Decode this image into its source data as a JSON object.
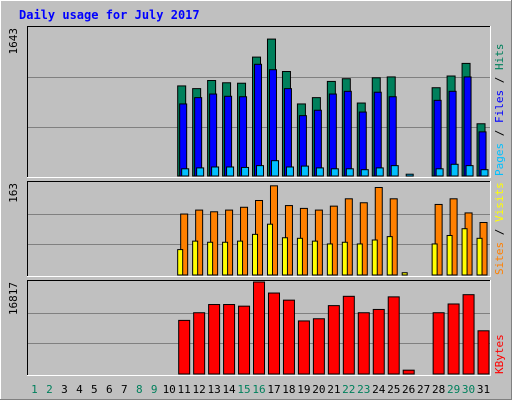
{
  "chart_data": {
    "type": "bar",
    "title": "Daily usage for July 2017",
    "colors": {
      "background": "#c0c0c0",
      "title": "#0000ff",
      "hits": "#00805c",
      "files": "#0000ff",
      "pages": "#00c0ff",
      "visits": "#ffff00",
      "sites": "#ff8000",
      "kbytes": "#ff0000",
      "gridline": "#808080",
      "weekday_label": "#000000",
      "weekend_label": "#00805c"
    },
    "categories": [
      "1",
      "2",
      "3",
      "4",
      "5",
      "6",
      "7",
      "8",
      "9",
      "10",
      "11",
      "12",
      "13",
      "14",
      "15",
      "16",
      "17",
      "18",
      "19",
      "20",
      "21",
      "22",
      "23",
      "24",
      "25",
      "26",
      "27",
      "28",
      "29",
      "30",
      "31"
    ],
    "weekend_days": [
      "1",
      "2",
      "8",
      "9",
      "15",
      "16",
      "22",
      "23",
      "29",
      "30"
    ],
    "panels": [
      {
        "name": "traffic",
        "y_max_label": "1643",
        "ylim": [
          0,
          1643
        ],
        "legend": [
          {
            "label": "Pages",
            "color": "#00c0ff"
          },
          {
            "label": "Files",
            "color": "#0000ff"
          },
          {
            "label": "Hits",
            "color": "#00805c"
          }
        ],
        "separator": " / ",
        "series": [
          {
            "name": "Hits",
            "color": "#00805c",
            "values": [
              0,
              0,
              0,
              0,
              0,
              0,
              0,
              0,
              0,
              0,
              1000,
              970,
              1060,
              1035,
              1030,
              1320,
              1520,
              1160,
              800,
              870,
              1050,
              1080,
              810,
              1090,
              1100,
              0,
              0,
              980,
              1110,
              1250,
              580
            ]
          },
          {
            "name": "Files",
            "color": "#0000ff",
            "values": [
              0,
              0,
              0,
              0,
              0,
              0,
              0,
              0,
              0,
              0,
              800,
              870,
              910,
              885,
              880,
              1240,
              1180,
              970,
              670,
              730,
              910,
              940,
              710,
              930,
              880,
              0,
              0,
              840,
              940,
              1100,
              490
            ]
          },
          {
            "name": "Pages",
            "color": "#00c0ff",
            "values": [
              0,
              0,
              0,
              0,
              0,
              0,
              0,
              0,
              0,
              0,
              80,
              90,
              100,
              100,
              95,
              115,
              170,
              100,
              110,
              90,
              80,
              80,
              70,
              90,
              115,
              20,
              0,
              80,
              130,
              115,
              70
            ]
          }
        ]
      },
      {
        "name": "visitors",
        "y_max_label": "163",
        "ylim": [
          0,
          163
        ],
        "legend": [
          {
            "label": "Sites",
            "color": "#ff8000"
          },
          {
            "label": "Visits",
            "color": "#ffff00"
          }
        ],
        "separator": " / ",
        "series": [
          {
            "name": "Sites",
            "color": "#ff8000",
            "values": [
              0,
              0,
              0,
              0,
              0,
              0,
              0,
              0,
              0,
              0,
              108,
              115,
              112,
              115,
              120,
              132,
              158,
              123,
              118,
              115,
              122,
              135,
              128,
              155,
              135,
              0,
              0,
              125,
              135,
              110,
              93
            ]
          },
          {
            "name": "Visits",
            "color": "#ffff00",
            "values": [
              0,
              0,
              0,
              0,
              0,
              0,
              0,
              0,
              0,
              0,
              45,
              60,
              58,
              58,
              60,
              72,
              90,
              66,
              65,
              60,
              55,
              58,
              55,
              62,
              68,
              4,
              0,
              55,
              70,
              82,
              65
            ]
          }
        ]
      },
      {
        "name": "bandwidth",
        "y_max_label": "16817",
        "ylim": [
          0,
          16817
        ],
        "legend": [
          {
            "label": "KBytes",
            "color": "#ff0000"
          }
        ],
        "separator": "",
        "series": [
          {
            "name": "KBytes",
            "color": "#ff0000",
            "values": [
              0,
              0,
              0,
              0,
              0,
              0,
              0,
              0,
              0,
              0,
              9800,
              11200,
              12700,
              12700,
              12400,
              16817,
              14800,
              13500,
              9700,
              10100,
              12500,
              14200,
              11200,
              11800,
              14100,
              700,
              0,
              11200,
              12800,
              14500,
              7900
            ]
          }
        ]
      }
    ]
  }
}
